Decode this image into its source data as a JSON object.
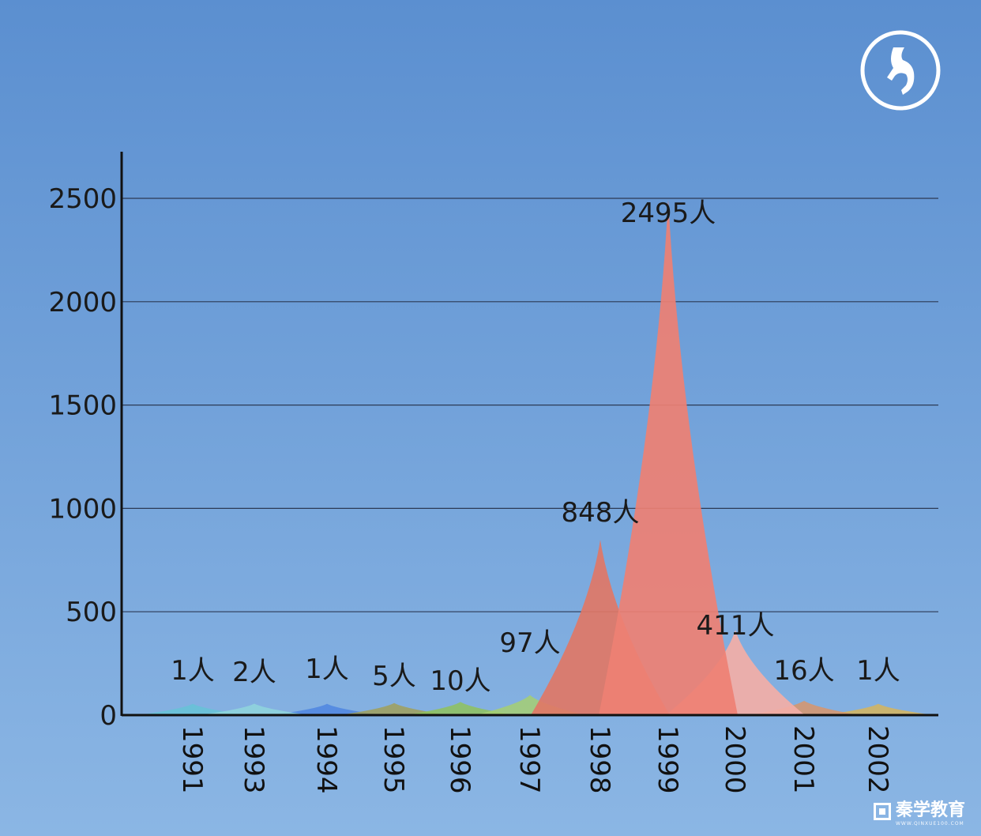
{
  "colors": {
    "bg_top": "#5b8fd0",
    "bg_bottom": "#8bb6e4",
    "series": [
      "#66c3d6",
      "#8fd6dc",
      "#4f86e0",
      "#a0a05a",
      "#8fc25c",
      "#a6cf72",
      "#e07766",
      "#ee8073",
      "#f3aea6",
      "#d8956a",
      "#d6b55c"
    ]
  },
  "logo": {
    "icon": "music-note-circle-icon"
  },
  "watermark": {
    "brand_text": "秦学教育",
    "brand_sub": "WWW.QINXUE100.COM",
    "icon": "brand-square-icon"
  },
  "chart_data": {
    "type": "area",
    "title": "",
    "xlabel": "",
    "ylabel": "",
    "ylim": [
      0,
      2700
    ],
    "yticks": [
      0,
      500,
      1000,
      1500,
      2000,
      2500
    ],
    "ytick_labels": [
      "0",
      "500",
      "1000",
      "1500",
      "2000",
      "2500"
    ],
    "grid": true,
    "categories": [
      "1991",
      "1993",
      "1994",
      "1995",
      "1996",
      "1997",
      "1998",
      "1999",
      "2000",
      "2001",
      "2002"
    ],
    "values": [
      1,
      2,
      1,
      5,
      10,
      97,
      848,
      2495,
      411,
      16,
      1
    ],
    "labels": [
      "1人",
      "2人",
      "1人",
      "5人",
      "10人",
      "97人",
      "848人",
      "2495人",
      "411人",
      "16人",
      "1人"
    ]
  }
}
